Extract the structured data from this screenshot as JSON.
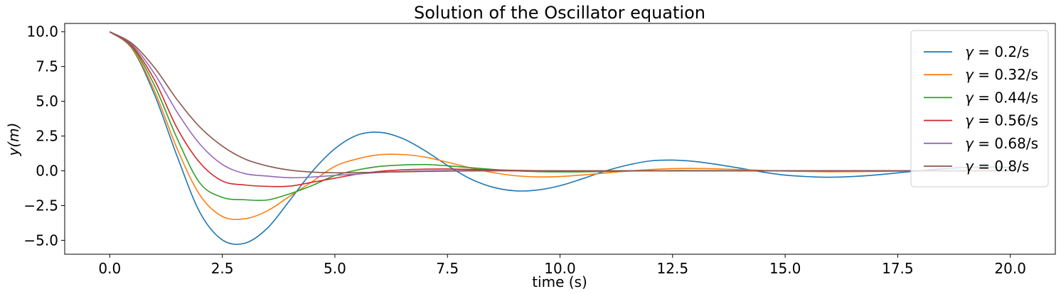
{
  "chart_data": {
    "type": "line",
    "title": "Solution of the Oscillator equation",
    "xlabel": "time (s)",
    "ylabel": "y(m)",
    "xlim": [
      -1.0,
      21.0
    ],
    "ylim": [
      -6.0,
      10.6
    ],
    "xticks": [
      0.0,
      2.5,
      5.0,
      7.5,
      10.0,
      12.5,
      15.0,
      17.5,
      20.0
    ],
    "xtick_labels": [
      "0.0",
      "2.5",
      "5.0",
      "7.5",
      "10.0",
      "12.5",
      "15.0",
      "17.5",
      "20.0"
    ],
    "yticks": [
      10.0,
      7.5,
      5.0,
      2.5,
      0.0,
      -2.5,
      -5.0
    ],
    "ytick_labels": [
      "10.0",
      "7.5",
      "5.0",
      "2.5",
      "0.0",
      "−2.5",
      "−5.0"
    ],
    "grid": false,
    "legend_position": "top-right",
    "x": [
      0,
      0.5,
      1,
      1.5,
      2,
      2.5,
      3,
      3.5,
      4,
      4.5,
      5,
      5.5,
      6,
      6.5,
      7,
      7.5,
      8,
      8.5,
      9,
      9.5,
      10,
      10.5,
      11,
      11.5,
      12,
      12.5,
      13,
      13.5,
      14,
      14.5,
      15,
      15.5,
      16,
      16.5,
      17,
      17.5,
      18,
      18.5,
      19,
      19.5,
      20
    ],
    "series": [
      {
        "name": "0.2/s",
        "color": "#1f77b4",
        "values": [
          10,
          8.76,
          5.43,
          1.02,
          -2.98,
          -4.97,
          -5.21,
          -4.13,
          -2.12,
          -0.04,
          1.59,
          2.57,
          2.77,
          2.33,
          1.45,
          0.39,
          -0.56,
          -1.17,
          -1.44,
          -1.38,
          -1.07,
          -0.57,
          -0.02,
          0.41,
          0.71,
          0.77,
          0.67,
          0.45,
          0.19,
          -0.09,
          -0.31,
          -0.42,
          -0.46,
          -0.41,
          -0.3,
          -0.15,
          0.01,
          0.15,
          0.24,
          0.27,
          0.25
        ]
      },
      {
        "name": "0.32/s",
        "color": "#ff7f0e",
        "values": [
          10,
          8.8,
          5.7,
          1.57,
          -1.73,
          -3.28,
          -3.45,
          -2.88,
          -1.82,
          -0.77,
          0.32,
          0.86,
          1.16,
          1.17,
          0.99,
          0.62,
          0.22,
          -0.12,
          -0.35,
          -0.44,
          -0.41,
          -0.3,
          -0.16,
          -0.02,
          0.09,
          0.16,
          0.17,
          0.14,
          0.09,
          0.03,
          -0.02,
          -0.05,
          -0.07,
          -0.06,
          -0.05,
          -0.03,
          -0.01,
          0.01,
          0.02,
          0.02,
          0.02
        ]
      },
      {
        "name": "0.44/s",
        "color": "#2ca02c",
        "values": [
          10,
          8.88,
          6.1,
          2.3,
          -0.87,
          -1.91,
          -2.08,
          -2.1,
          -1.65,
          -1.05,
          -0.34,
          0.06,
          0.32,
          0.42,
          0.45,
          0.36,
          0.23,
          0.1,
          0,
          -0.06,
          -0.08,
          -0.07,
          -0.05,
          -0.02,
          0,
          0.02,
          0.02,
          0.02,
          0.01,
          0.01,
          0,
          0,
          0,
          0,
          0,
          0,
          0,
          0,
          0,
          0,
          0
        ]
      },
      {
        "name": "0.56/s",
        "color": "#d62728",
        "values": [
          10,
          8.95,
          6.5,
          3.05,
          0.59,
          -0.73,
          -1.02,
          -1.12,
          -1.1,
          -0.82,
          -0.53,
          -0.24,
          -0.04,
          0.07,
          0.12,
          0.13,
          0.1,
          0.07,
          0.04,
          0.01,
          -0.01,
          -0.01,
          -0.01,
          -0.01,
          0,
          0,
          0,
          0,
          0,
          0,
          0,
          0,
          0,
          0,
          0,
          0,
          0,
          0,
          0,
          0,
          0
        ]
      },
      {
        "name": "0.68/s",
        "color": "#9467bd",
        "values": [
          10,
          9.05,
          6.95,
          4.2,
          1.93,
          0.46,
          -0.2,
          -0.38,
          -0.5,
          -0.45,
          -0.33,
          -0.23,
          -0.12,
          -0.05,
          -0.01,
          0.01,
          0.02,
          0.02,
          0.01,
          0.01,
          0,
          0,
          0,
          0,
          0,
          0,
          0,
          0,
          0,
          0,
          0,
          0,
          0,
          0,
          0,
          0,
          0,
          0,
          0,
          0,
          0
        ]
      },
      {
        "name": "0.8/s",
        "color": "#8c564b",
        "values": [
          10,
          9.15,
          7.4,
          5.1,
          3.15,
          1.78,
          0.85,
          0.35,
          0.05,
          -0.09,
          -0.14,
          -0.13,
          -0.1,
          -0.07,
          -0.04,
          -0.02,
          -0.01,
          0,
          0,
          0,
          0,
          0,
          0,
          0,
          0,
          0,
          0,
          0,
          0,
          0,
          0,
          0,
          0,
          0,
          0,
          0,
          0,
          0,
          0,
          0,
          0
        ]
      }
    ]
  }
}
